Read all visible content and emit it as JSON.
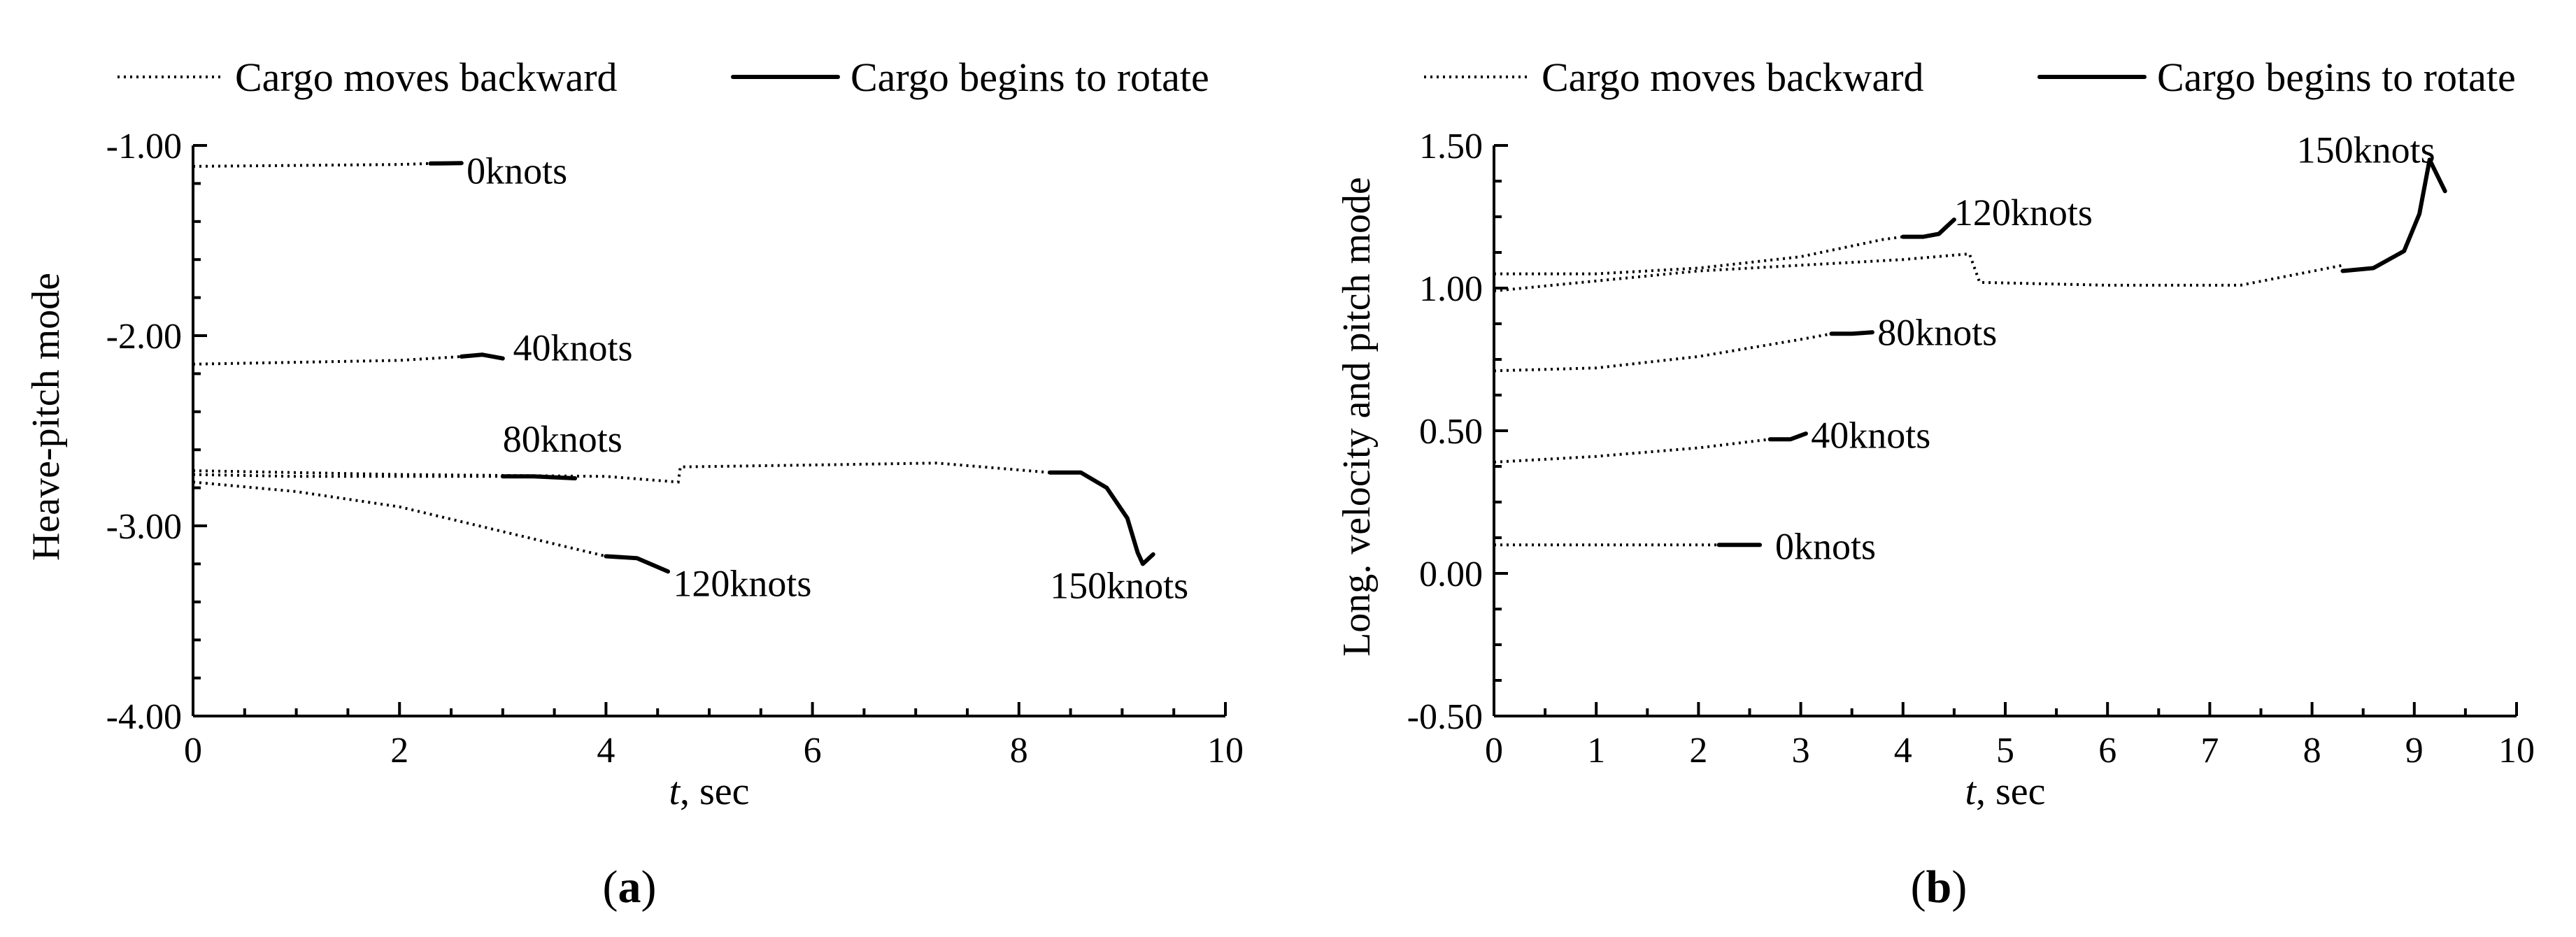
{
  "chart_data": [
    {
      "type": "line",
      "panel_label": "(a)",
      "xlabel_italic": "t",
      "xlabel_rest": ", sec",
      "ylabel": "Heave-pitch mode",
      "xlim": [
        0,
        10
      ],
      "ylim": [
        -4,
        -1
      ],
      "x_ticks": [
        0,
        2,
        4,
        6,
        8,
        10
      ],
      "x_tick_labels": [
        "0",
        "2",
        "4",
        "6",
        "8",
        "10"
      ],
      "y_ticks": [
        -4,
        -3,
        -2,
        -1
      ],
      "y_tick_labels": [
        "-4.00",
        "-3.00",
        "-2.00",
        "-1.00"
      ],
      "legend": [
        "Cargo moves backward",
        "Cargo begins to rotate"
      ],
      "legend_position": "top",
      "series": [
        {
          "name": "0knots",
          "label": "0knots",
          "backward": [
            [
              0,
              -1.11
            ],
            [
              1,
              -1.105
            ],
            [
              2,
              -1.1
            ],
            [
              2.3,
              -1.095
            ]
          ],
          "rotate": [
            [
              2.3,
              -1.095
            ],
            [
              2.6,
              -1.093
            ]
          ],
          "label_at": [
            2.65,
            -1.2
          ]
        },
        {
          "name": "40knots",
          "label": "40knots",
          "backward": [
            [
              0,
              -2.15
            ],
            [
              1,
              -2.14
            ],
            [
              2,
              -2.13
            ],
            [
              2.6,
              -2.11
            ]
          ],
          "rotate": [
            [
              2.6,
              -2.11
            ],
            [
              2.8,
              -2.1
            ],
            [
              3.0,
              -2.12
            ]
          ],
          "label_at": [
            3.1,
            -2.13
          ]
        },
        {
          "name": "80knots",
          "label": "80knots",
          "backward": [
            [
              0,
              -2.73
            ],
            [
              1,
              -2.74
            ],
            [
              2,
              -2.74
            ],
            [
              3.0,
              -2.74
            ]
          ],
          "rotate": [
            [
              3.0,
              -2.74
            ],
            [
              3.3,
              -2.74
            ],
            [
              3.7,
              -2.75
            ]
          ],
          "label_at": [
            3.0,
            -2.61
          ]
        },
        {
          "name": "120knots",
          "label": "120knots",
          "backward": [
            [
              0,
              -2.77
            ],
            [
              1,
              -2.82
            ],
            [
              2,
              -2.9
            ],
            [
              3,
              -3.03
            ],
            [
              4.0,
              -3.16
            ]
          ],
          "rotate": [
            [
              4.0,
              -3.16
            ],
            [
              4.3,
              -3.17
            ],
            [
              4.6,
              -3.24
            ]
          ],
          "label_at": [
            4.65,
            -3.37
          ]
        },
        {
          "name": "150knots",
          "label": "150knots",
          "backward": [
            [
              0,
              -2.71
            ],
            [
              2,
              -2.73
            ],
            [
              4,
              -2.74
            ],
            [
              4.7,
              -2.77
            ],
            [
              4.72,
              -2.69
            ],
            [
              6,
              -2.68
            ],
            [
              7.2,
              -2.67
            ],
            [
              8.3,
              -2.72
            ]
          ],
          "rotate": [
            [
              8.3,
              -2.72
            ],
            [
              8.6,
              -2.72
            ],
            [
              8.85,
              -2.8
            ],
            [
              9.05,
              -2.96
            ],
            [
              9.15,
              -3.14
            ],
            [
              9.2,
              -3.2
            ],
            [
              9.3,
              -3.15
            ]
          ],
          "label_at": [
            8.3,
            -3.38
          ]
        }
      ]
    },
    {
      "type": "line",
      "panel_label": "(b)",
      "xlabel_italic": "t",
      "xlabel_rest": ", sec",
      "ylabel": "Long. velocity and pitch mode",
      "xlim": [
        0,
        10
      ],
      "ylim": [
        -0.5,
        1.5
      ],
      "x_ticks": [
        0,
        1,
        2,
        3,
        4,
        5,
        6,
        7,
        8,
        9,
        10
      ],
      "x_tick_labels": [
        "0",
        "1",
        "2",
        "3",
        "4",
        "5",
        "6",
        "7",
        "8",
        "9",
        "10"
      ],
      "y_ticks": [
        -0.5,
        0,
        0.5,
        1,
        1.5
      ],
      "y_tick_labels": [
        "-0.50",
        "0.00",
        "0.50",
        "1.00",
        "1.50"
      ],
      "legend": [
        "Cargo moves backward",
        "Cargo begins to rotate"
      ],
      "legend_position": "top",
      "series": [
        {
          "name": "0knots",
          "label": "0knots",
          "backward": [
            [
              0,
              0.1
            ],
            [
              1,
              0.1
            ],
            [
              2,
              0.1
            ],
            [
              2.2,
              0.1
            ]
          ],
          "rotate": [
            [
              2.2,
              0.1
            ],
            [
              2.6,
              0.1
            ]
          ],
          "label_at": [
            2.75,
            0.05
          ]
        },
        {
          "name": "40knots",
          "label": "40knots",
          "backward": [
            [
              0,
              0.39
            ],
            [
              1,
              0.41
            ],
            [
              2,
              0.44
            ],
            [
              2.7,
              0.47
            ]
          ],
          "rotate": [
            [
              2.7,
              0.47
            ],
            [
              2.9,
              0.47
            ],
            [
              3.05,
              0.49
            ]
          ],
          "label_at": [
            3.1,
            0.44
          ]
        },
        {
          "name": "80knots",
          "label": "80knots",
          "backward": [
            [
              0,
              0.71
            ],
            [
              1,
              0.72
            ],
            [
              2,
              0.76
            ],
            [
              3,
              0.82
            ],
            [
              3.3,
              0.84
            ]
          ],
          "rotate": [
            [
              3.3,
              0.84
            ],
            [
              3.5,
              0.84
            ],
            [
              3.7,
              0.845
            ]
          ],
          "label_at": [
            3.75,
            0.8
          ]
        },
        {
          "name": "120knots",
          "label": "120knots",
          "backward": [
            [
              0,
              1.05
            ],
            [
              1,
              1.05
            ],
            [
              2,
              1.07
            ],
            [
              3,
              1.11
            ],
            [
              3.8,
              1.17
            ],
            [
              4.0,
              1.18
            ]
          ],
          "rotate": [
            [
              4.0,
              1.18
            ],
            [
              4.2,
              1.18
            ],
            [
              4.35,
              1.19
            ],
            [
              4.5,
              1.24
            ]
          ],
          "label_at": [
            4.5,
            1.22
          ]
        },
        {
          "name": "150knots",
          "label": "150knots",
          "backward": [
            [
              0,
              0.99
            ],
            [
              2,
              1.06
            ],
            [
              4,
              1.1
            ],
            [
              4.65,
              1.12
            ],
            [
              4.75,
              1.02
            ],
            [
              6,
              1.01
            ],
            [
              7.3,
              1.01
            ],
            [
              8.3,
              1.08
            ]
          ],
          "rotate": [
            [
              8.3,
              1.06
            ],
            [
              8.6,
              1.07
            ],
            [
              8.9,
              1.13
            ],
            [
              9.05,
              1.26
            ],
            [
              9.15,
              1.45
            ],
            [
              9.3,
              1.34
            ]
          ],
          "label_at": [
            7.85,
            1.44
          ]
        }
      ]
    }
  ]
}
